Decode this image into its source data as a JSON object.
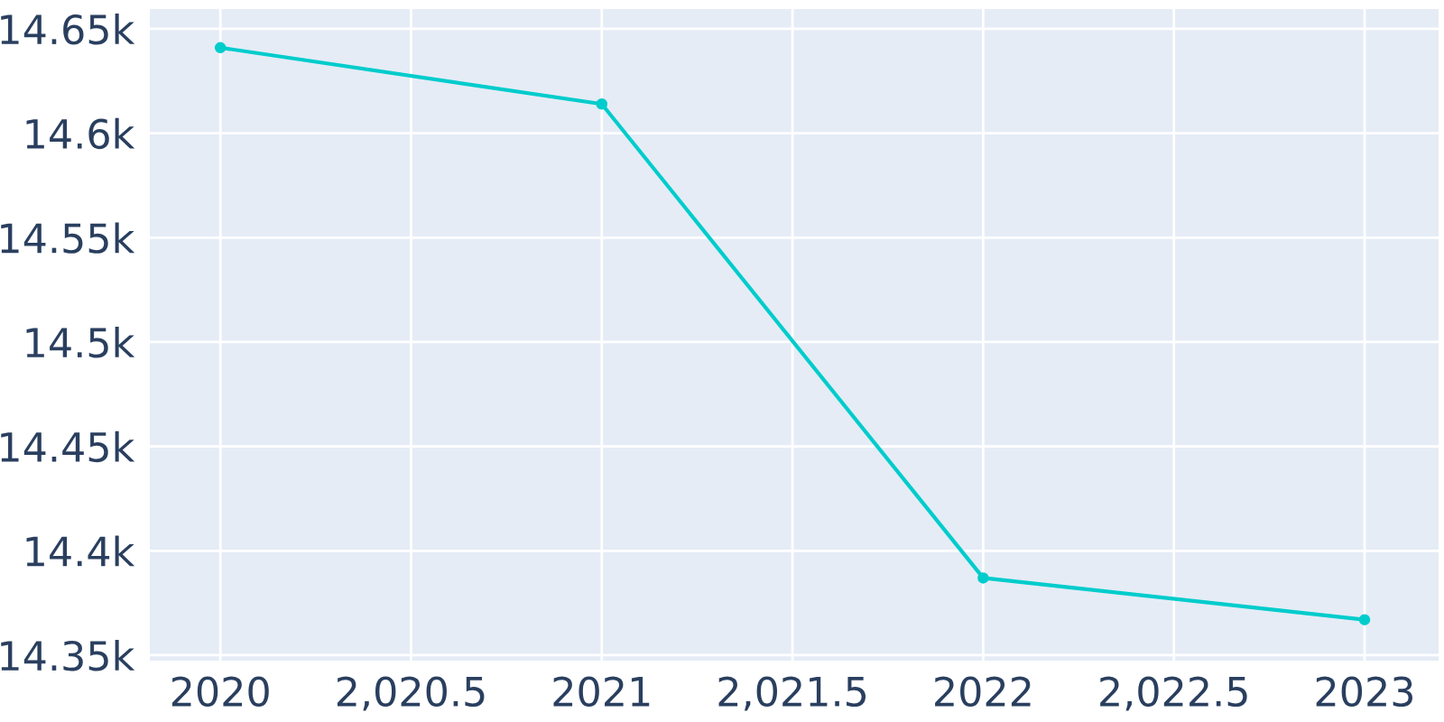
{
  "chart_data": {
    "type": "line",
    "x": [
      2020,
      2021,
      2022,
      2023
    ],
    "series": [
      {
        "color": "#00cccc",
        "values": [
          14641,
          14614,
          14387,
          14367
        ]
      }
    ],
    "xlim": [
      2019.815,
      2023.194
    ],
    "xticks": [
      2020,
      {
        "value": 2020.5,
        "label": "2,020.5"
      },
      2021,
      {
        "value": 2021.5,
        "label": "2,021.5"
      },
      2022,
      {
        "value": 2022.5,
        "label": "2,022.5"
      },
      2023
    ],
    "ylim": [
      14347.4,
      14659.5
    ],
    "yticks": [
      {
        "value": 14350,
        "label": "14.35k"
      },
      {
        "value": 14400,
        "label": "14.4k"
      },
      {
        "value": 14450,
        "label": "14.45k"
      },
      {
        "value": 14500,
        "label": "14.5k"
      },
      {
        "value": 14550,
        "label": "14.55k"
      },
      {
        "value": 14600,
        "label": "14.6k"
      },
      {
        "value": 14650,
        "label": "14.65k"
      }
    ],
    "grid": true,
    "marker": "circle",
    "line_style": "solid",
    "legend": false
  }
}
